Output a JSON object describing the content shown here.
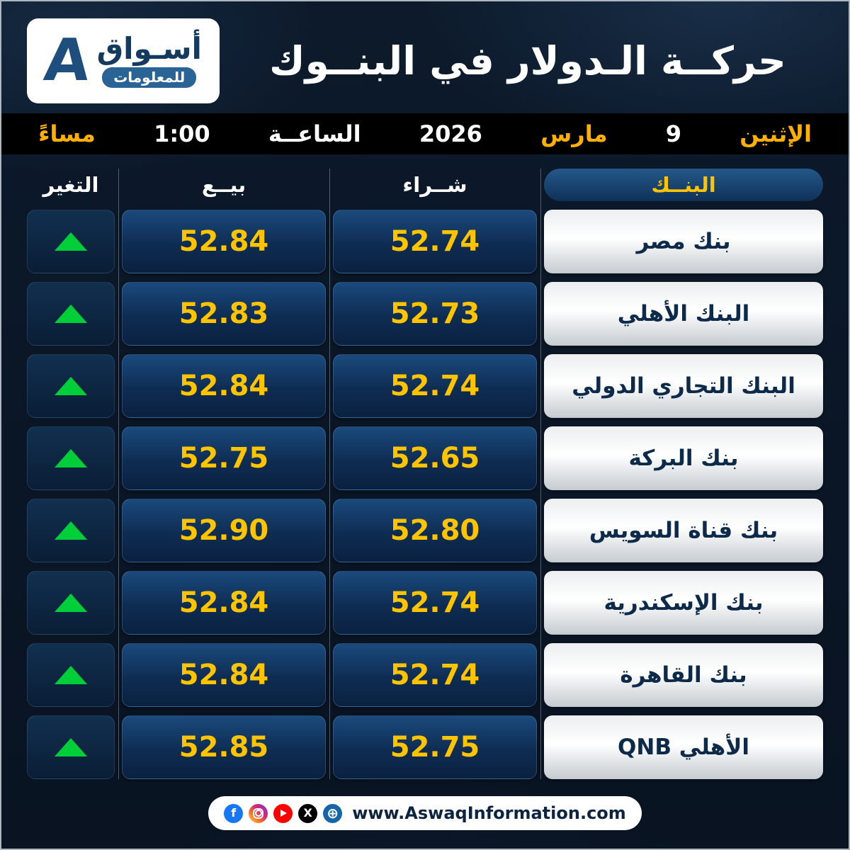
{
  "header": {
    "title": "حركــة الـدولار في البنــوك",
    "logo": {
      "mark": "A",
      "name": "أسـواق",
      "tagline": "للمعلومات"
    }
  },
  "datebar": {
    "day": "الإثنين",
    "day_number": "9",
    "month": "مارس",
    "year": "2026",
    "hour_label": "الساعــة",
    "time": "1:00",
    "period": "مساءً"
  },
  "table": {
    "headers": {
      "bank": "البنــك",
      "buy": "شــراء",
      "sell": "بيــع",
      "change": "التغير"
    },
    "rows": [
      {
        "bank": "بنك مصر",
        "buy": "52.74",
        "sell": "52.84",
        "change": "up"
      },
      {
        "bank": "البنك الأهلي",
        "buy": "52.73",
        "sell": "52.83",
        "change": "up"
      },
      {
        "bank": "البنك التجاري الدولي",
        "buy": "52.74",
        "sell": "52.84",
        "change": "up"
      },
      {
        "bank": "بنك البركة",
        "buy": "52.65",
        "sell": "52.75",
        "change": "up"
      },
      {
        "bank": "بنك قناة السويس",
        "buy": "52.80",
        "sell": "52.90",
        "change": "up"
      },
      {
        "bank": "بنك الإسكندرية",
        "buy": "52.74",
        "sell": "52.84",
        "change": "up"
      },
      {
        "bank": "بنك القاهرة",
        "buy": "52.74",
        "sell": "52.84",
        "change": "up"
      },
      {
        "bank": "QNB الأهلي",
        "buy": "52.75",
        "sell": "52.85",
        "change": "up"
      }
    ]
  },
  "chart_data": {
    "type": "table",
    "title": "حركــة الـدولار في البنــوك",
    "datetime_label": "الإثنين 9 مارس 2026 الساعــة 1:00 مساءً",
    "columns": [
      "البنــك",
      "شــراء",
      "بيــع",
      "التغير"
    ],
    "rows": [
      [
        "بنك مصر",
        52.74,
        52.84,
        "up"
      ],
      [
        "البنك الأهلي",
        52.73,
        52.83,
        "up"
      ],
      [
        "البنك التجاري الدولي",
        52.74,
        52.84,
        "up"
      ],
      [
        "بنك البركة",
        52.65,
        52.75,
        "up"
      ],
      [
        "بنك قناة السويس",
        52.8,
        52.9,
        "up"
      ],
      [
        "بنك الإسكندرية",
        52.74,
        52.84,
        "up"
      ],
      [
        "بنك القاهرة",
        52.74,
        52.84,
        "up"
      ],
      [
        "QNB الأهلي",
        52.75,
        52.85,
        "up"
      ]
    ]
  },
  "footer": {
    "website": "www.AswaqInformation.com",
    "social_icons": [
      {
        "name": "facebook",
        "glyph": "f"
      },
      {
        "name": "instagram",
        "glyph": ""
      },
      {
        "name": "youtube",
        "glyph": ""
      },
      {
        "name": "x",
        "glyph": "X"
      },
      {
        "name": "globe",
        "glyph": "⊕"
      }
    ]
  },
  "colors": {
    "background": "#0a1624",
    "accent_yellow": "#ffc400",
    "date_yellow": "#ffb000",
    "up_green": "#00cf3a",
    "panel_blue": "#0e2c52",
    "bank_text": "#0e2a4a"
  }
}
